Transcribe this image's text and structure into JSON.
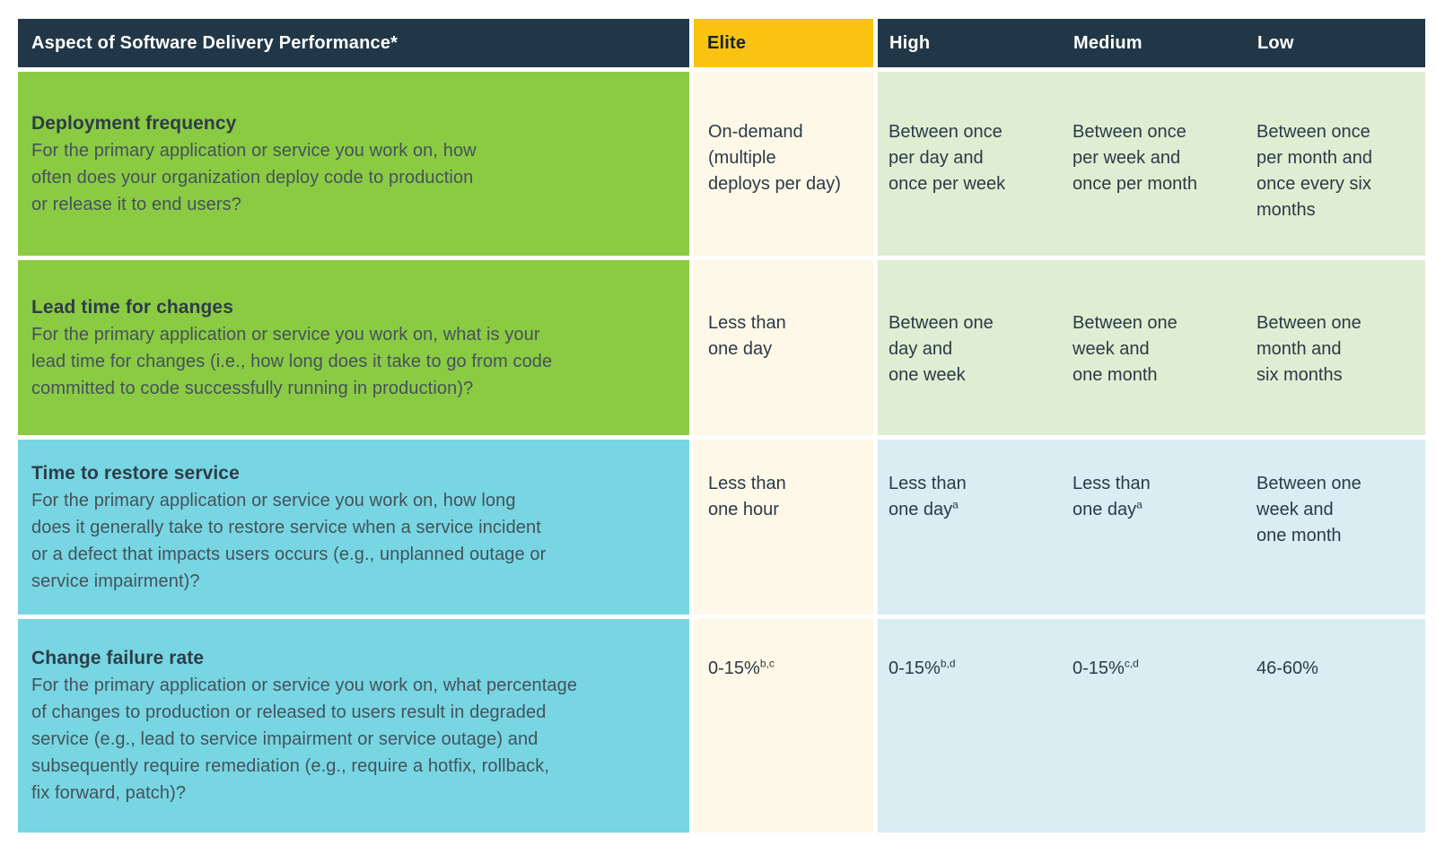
{
  "colors": {
    "header_navy": "#213747",
    "elite_yellow": "#fbc311",
    "aspect_green": "#8bcb43",
    "aspect_cyan": "#77d6e2",
    "elite_cell_cream": "#fdf8e7",
    "cell_light_green": "#dfedd2",
    "cell_light_blue": "#d9edf3"
  },
  "header": {
    "aspect_label": "Aspect of Software Delivery Performance*",
    "levels": [
      "Elite",
      "High",
      "Medium",
      "Low"
    ]
  },
  "rows": [
    {
      "theme": "green",
      "title": "Deployment frequency",
      "description": "For the primary application or service you work on, how\noften does your organization deploy code to production\nor release it to end users?",
      "cells": [
        {
          "level": "elite",
          "text": "On-demand\n(multiple\ndeploys per day)",
          "sup": ""
        },
        {
          "level": "high",
          "text": "Between once\nper day and\nonce per week",
          "sup": ""
        },
        {
          "level": "medium",
          "text": "Between once\nper week and\nonce per month",
          "sup": ""
        },
        {
          "level": "low",
          "text": "Between once\nper month and\nonce every six\nmonths",
          "sup": ""
        }
      ]
    },
    {
      "theme": "green",
      "title": "Lead time for changes",
      "description": "For the primary application or service you work on, what is your\nlead time for changes (i.e., how long does it take to go from code\ncommitted to code successfully running in production)?",
      "cells": [
        {
          "level": "elite",
          "text": "Less than\none day",
          "sup": ""
        },
        {
          "level": "high",
          "text": "Between one\nday and\none week",
          "sup": ""
        },
        {
          "level": "medium",
          "text": "Between one\nweek and\none month",
          "sup": ""
        },
        {
          "level": "low",
          "text": "Between one\nmonth and\nsix months",
          "sup": ""
        }
      ]
    },
    {
      "theme": "cyan",
      "title": "Time to restore service",
      "description": "For the primary application or service you work on, how long\ndoes it generally take to restore service when a service incident\nor a defect that impacts users occurs (e.g., unplanned outage or\nservice impairment)?",
      "cells": [
        {
          "level": "elite",
          "text": "Less than\none hour",
          "sup": ""
        },
        {
          "level": "high",
          "text": "Less than\none day",
          "sup": "a"
        },
        {
          "level": "medium",
          "text": "Less than\none day",
          "sup": "a"
        },
        {
          "level": "low",
          "text": "Between one\nweek and\none month",
          "sup": ""
        }
      ]
    },
    {
      "theme": "cyan",
      "title": "Change failure rate",
      "description": "For the primary application or service you work on, what percentage\nof changes to production or released to users result in degraded\nservice (e.g., lead to service impairment or service outage) and\nsubsequently require remediation (e.g., require a hotfix, rollback,\nfix forward, patch)?",
      "cells": [
        {
          "level": "elite",
          "text": "0-15%",
          "sup": "b,c"
        },
        {
          "level": "high",
          "text": "0-15%",
          "sup": "b,d"
        },
        {
          "level": "medium",
          "text": "0-15%",
          "sup": "c,d"
        },
        {
          "level": "low",
          "text": "46-60%",
          "sup": ""
        }
      ]
    }
  ]
}
